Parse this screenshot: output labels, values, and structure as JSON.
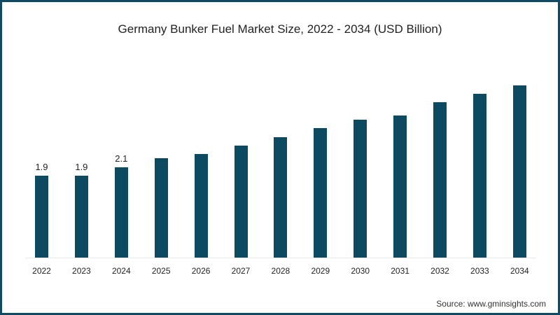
{
  "chart_data": {
    "type": "bar",
    "title": "Germany Bunker Fuel Market Size, 2022 - 2034 (USD Billion)",
    "xlabel": "",
    "ylabel": "USD Billion",
    "categories": [
      "2022",
      "2023",
      "2024",
      "2025",
      "2026",
      "2027",
      "2028",
      "2029",
      "2030",
      "2031",
      "2032",
      "2033",
      "2034"
    ],
    "values": [
      1.9,
      1.9,
      2.1,
      2.3,
      2.4,
      2.6,
      2.8,
      3.0,
      3.2,
      3.3,
      3.6,
      3.8,
      4.0
    ],
    "data_labels": [
      "1.9",
      "1.9",
      "2.1",
      "",
      "",
      "",
      "",
      "",
      "",
      "",
      "",
      "",
      ""
    ],
    "ylim": [
      0,
      4.2
    ],
    "grid": false,
    "legend": null,
    "bar_color": "#0c4a62",
    "source": "Source: www.gminsights.com"
  }
}
